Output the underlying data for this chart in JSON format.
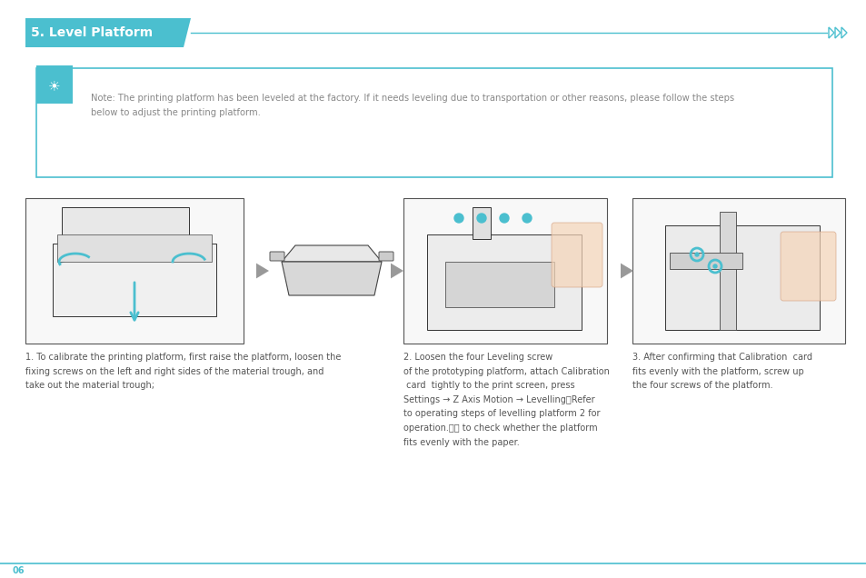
{
  "bg_color": "#ffffff",
  "header_bg": "#4bbfcf",
  "header_text": "5. Level Platform",
  "header_text_color": "#ffffff",
  "header_fontsize": 10,
  "line_color": "#4bbfcf",
  "note_box_color": "#4bbfcf",
  "note_icon_bg": "#4bbfcf",
  "note_text": "Note: The printing platform has been leveled at the factory. If it needs leveling due to transportation or other reasons, please follow the steps\nbelow to adjust the printing platform.",
  "note_text_color": "#888888",
  "note_fontsize": 7.2,
  "step1_text": "1. To calibrate the printing platform, first raise the platform, loosen the\nfixing screws on the left and right sides of the material trough, and\ntake out the material trough;",
  "step2_text": "2. Loosen the four Leveling screw\nof the prototyping platform, attach Calibration\n card  tightly to the print screen, press\nSettings → Z Axis Motion → Levelling（Refer\nto operating steps of levelling platform 2 for\noperation.）， to check whether the platform\nfits evenly with the paper.",
  "step3_text": "3. After confirming that Calibration  card\nfits evenly with the platform, screw up\nthe four screws of the platform.",
  "step_text_color": "#555555",
  "step_fontsize": 7.0,
  "footer_text": "06",
  "footer_color": "#4bbfcf",
  "footer_line_color": "#4bbfcf",
  "arrow_color": "#999999",
  "cyan": "#4bbfcf"
}
